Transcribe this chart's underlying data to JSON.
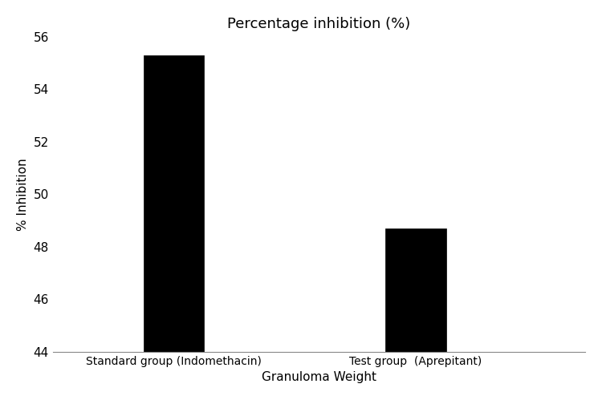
{
  "categories": [
    "Standard group (Indomethacin)",
    "Test group  (Aprepitant)"
  ],
  "values": [
    55.3,
    48.7
  ],
  "bar_colors": [
    "#000000",
    "#000000"
  ],
  "title": "Percentage inhibition (%)",
  "ylabel": "% Inhibition",
  "xlabel": "Granuloma Weight",
  "ylim": [
    44,
    56
  ],
  "yticks": [
    44,
    46,
    48,
    50,
    52,
    54,
    56
  ],
  "bar_width": 0.25,
  "title_fontsize": 13,
  "ylabel_fontsize": 11,
  "xlabel_fontsize": 11,
  "tick_fontsize": 11,
  "xtick_fontsize": 10,
  "background_color": "#ffffff",
  "edge_color": "#000000"
}
